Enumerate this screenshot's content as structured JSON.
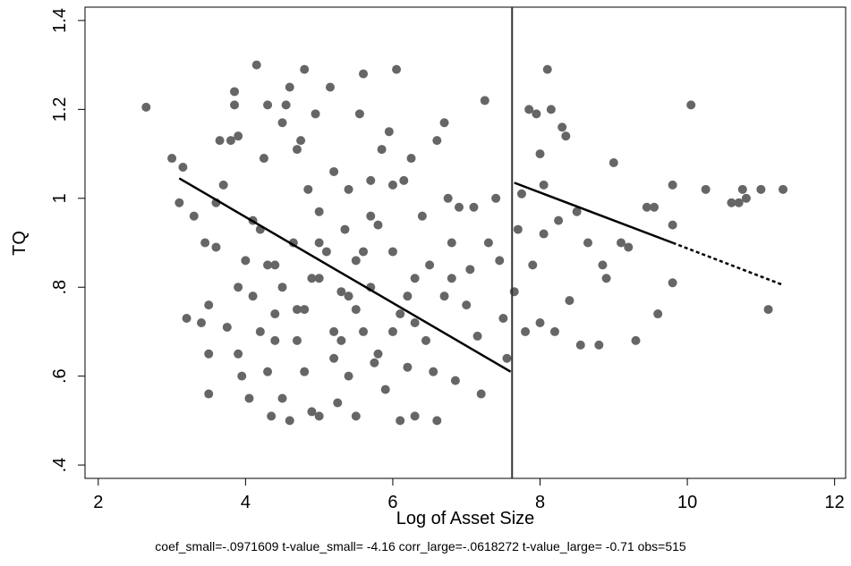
{
  "chart_data": {
    "type": "scatter",
    "x_label": "Log of Asset Size",
    "y_label": "TQ",
    "note": "coef_small=-.0971609 t-value_small= -4.16 corr_large=-.0618272 t-value_large= -0.71 obs=515",
    "xlim": [
      1.82,
      12.15
    ],
    "ylim": [
      0.37,
      1.43
    ],
    "xticks": [
      2,
      4,
      6,
      8,
      10,
      12
    ],
    "yticks": [
      {
        "value": 0.4,
        "label": ".4"
      },
      {
        "value": 0.6,
        "label": ".6"
      },
      {
        "value": 0.8,
        "label": ".8"
      },
      1,
      1.2,
      1.4
    ],
    "color": "#666666",
    "grid": false,
    "x": [
      2.65,
      3.0,
      3.1,
      3.15,
      3.2,
      3.3,
      3.4,
      3.45,
      3.5,
      3.5,
      3.5,
      3.6,
      3.6,
      3.65,
      3.7,
      3.75,
      3.8,
      3.85,
      3.85,
      3.9,
      3.9,
      3.95,
      4.0,
      4.05,
      4.1,
      4.15,
      4.2,
      4.2,
      4.25,
      4.3,
      4.3,
      4.35,
      4.4,
      4.4,
      4.5,
      4.5,
      4.55,
      4.6,
      4.6,
      4.65,
      4.7,
      4.7,
      4.75,
      4.8,
      4.8,
      4.85,
      4.9,
      4.95,
      5.0,
      5.0,
      5.0,
      5.1,
      5.15,
      5.2,
      5.2,
      5.25,
      5.3,
      5.35,
      5.4,
      5.4,
      5.5,
      5.5,
      5.55,
      5.6,
      5.6,
      5.7,
      5.7,
      5.75,
      5.8,
      5.85,
      5.9,
      5.95,
      6.0,
      6.0,
      6.05,
      6.1,
      6.1,
      6.15,
      6.2,
      6.25,
      6.3,
      6.3,
      6.4,
      6.45,
      6.5,
      6.55,
      6.6,
      6.6,
      6.7,
      6.7,
      6.75,
      6.8,
      6.85,
      6.9,
      7.0,
      7.05,
      7.1,
      7.15,
      7.2,
      7.25,
      7.3,
      7.4,
      7.45,
      7.5,
      7.55,
      7.65,
      7.7,
      7.75,
      7.8,
      7.85,
      7.9,
      7.95,
      8.0,
      8.0,
      8.05,
      8.05,
      8.1,
      8.15,
      8.2,
      8.25,
      8.3,
      8.35,
      8.4,
      8.5,
      8.55,
      8.65,
      8.8,
      8.85,
      8.9,
      9.0,
      9.1,
      9.2,
      9.3,
      9.45,
      9.55,
      9.6,
      9.8,
      9.8,
      9.8,
      10.05,
      10.25,
      10.6,
      10.7,
      10.75,
      10.8,
      11.0,
      11.1,
      11.3,
      4.5,
      4.8,
      5.2,
      5.5,
      5.0,
      4.3,
      5.8,
      6.2,
      4.7,
      5.3,
      5.6,
      6.0,
      4.9,
      5.4,
      4.4,
      3.9,
      4.1,
      5.7,
      6.3,
      6.8
    ],
    "values": [
      1.205,
      1.09,
      0.99,
      1.07,
      0.73,
      0.96,
      0.72,
      0.9,
      0.65,
      0.56,
      0.76,
      0.99,
      0.89,
      1.13,
      1.03,
      0.71,
      1.13,
      1.21,
      1.24,
      1.14,
      0.65,
      0.6,
      0.86,
      0.55,
      0.78,
      1.3,
      0.93,
      0.7,
      1.09,
      1.21,
      0.61,
      0.51,
      0.85,
      0.68,
      1.17,
      0.55,
      1.21,
      1.25,
      0.5,
      0.9,
      1.11,
      0.75,
      1.13,
      1.29,
      0.61,
      1.02,
      0.52,
      1.19,
      0.97,
      0.82,
      0.51,
      0.88,
      1.25,
      1.06,
      0.64,
      0.54,
      0.79,
      0.93,
      1.02,
      0.6,
      0.86,
      0.51,
      1.19,
      1.28,
      0.7,
      1.04,
      0.8,
      0.63,
      0.94,
      1.11,
      0.57,
      1.15,
      0.88,
      1.03,
      1.29,
      0.5,
      0.74,
      1.04,
      0.62,
      1.09,
      0.82,
      0.51,
      0.96,
      0.68,
      0.85,
      0.61,
      1.13,
      0.5,
      1.17,
      0.78,
      1.0,
      0.82,
      0.59,
      0.98,
      0.76,
      0.84,
      0.98,
      0.69,
      0.56,
      1.22,
      0.9,
      1.0,
      0.86,
      0.73,
      0.64,
      0.79,
      0.93,
      1.01,
      0.7,
      1.2,
      0.85,
      1.19,
      1.1,
      0.72,
      1.03,
      0.92,
      1.29,
      1.2,
      0.7,
      0.95,
      1.16,
      1.14,
      0.77,
      0.97,
      0.67,
      0.9,
      0.67,
      0.85,
      0.82,
      1.08,
      0.9,
      0.89,
      0.68,
      0.98,
      0.98,
      0.74,
      1.03,
      0.94,
      0.81,
      1.21,
      1.02,
      0.99,
      0.99,
      1.02,
      1.0,
      1.02,
      0.75,
      1.02,
      0.8,
      0.75,
      0.7,
      0.75,
      0.9,
      0.85,
      0.65,
      0.78,
      0.68,
      0.68,
      0.88,
      0.7,
      0.82,
      0.78,
      0.74,
      0.8,
      0.95,
      0.96,
      0.72,
      0.9
    ],
    "fit_lines": [
      {
        "x": [
          3.1,
          7.6
        ],
        "values": [
          1.045,
          0.61
        ],
        "dashed": false
      },
      {
        "x": [
          7.65,
          9.8
        ],
        "values": [
          1.035,
          0.9
        ],
        "dashed": false
      },
      {
        "x": [
          9.8,
          11.3
        ],
        "values": [
          0.9,
          0.805
        ],
        "dashed": true
      }
    ],
    "vline": 7.62
  }
}
